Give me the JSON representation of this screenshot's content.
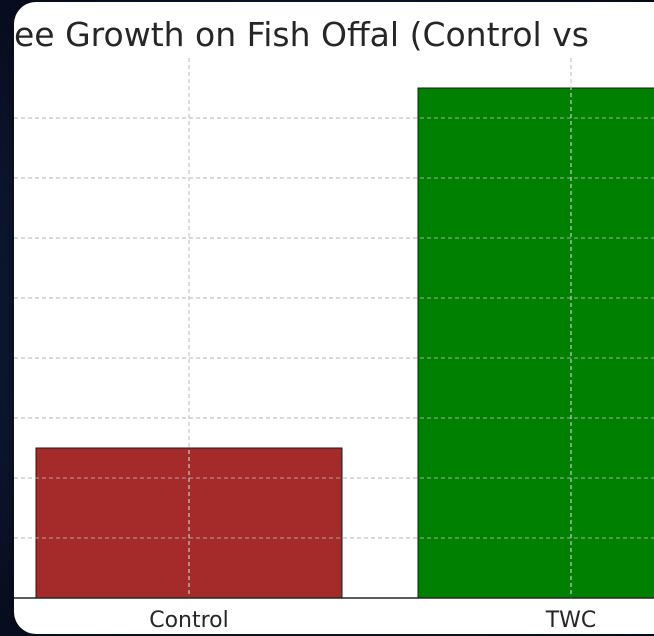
{
  "chart_data": {
    "type": "bar",
    "title": "ee Growth on Fish Offal (Control vs",
    "xlabel": "",
    "ylabel": "",
    "categories": [
      "Control",
      "TWC"
    ],
    "values": [
      2.5,
      8.5
    ],
    "ylim": [
      0,
      8.9
    ],
    "grid": true,
    "colors": [
      "#a52a2a",
      "#008000"
    ]
  }
}
